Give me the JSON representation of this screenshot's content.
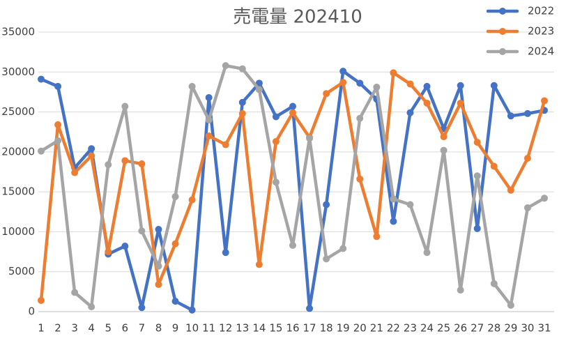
{
  "chart_data": {
    "type": "line",
    "title": "売電量 202410",
    "categories": [
      "1",
      "2",
      "3",
      "4",
      "5",
      "6",
      "7",
      "8",
      "9",
      "10",
      "11",
      "12",
      "13",
      "14",
      "15",
      "16",
      "17",
      "18",
      "19",
      "20",
      "21",
      "22",
      "23",
      "24",
      "25",
      "26",
      "27",
      "28",
      "29",
      "30",
      "31"
    ],
    "series": [
      {
        "name": "2022",
        "color": "#4472c4",
        "values": [
          29100,
          28200,
          18000,
          20400,
          7200,
          8200,
          500,
          10300,
          1300,
          200,
          26800,
          7400,
          26200,
          28600,
          24400,
          25700,
          400,
          13400,
          30100,
          28600,
          26600,
          11300,
          24900,
          28200,
          22900,
          28300,
          10400,
          28300,
          24500,
          24800,
          25200
        ]
      },
      {
        "name": "2023",
        "color": "#ed7d31",
        "values": [
          1400,
          23400,
          17400,
          19500,
          7500,
          18900,
          18500,
          3400,
          8500,
          14000,
          22000,
          20900,
          24800,
          5900,
          21300,
          24900,
          21800,
          27300,
          28700,
          16600,
          9400,
          29900,
          28500,
          26100,
          21900,
          26100,
          21200,
          18200,
          15200,
          19200,
          26400
        ]
      },
      {
        "name": "2024",
        "color": "#a5a5a5",
        "values": [
          20100,
          21400,
          2400,
          600,
          18400,
          25700,
          10100,
          5700,
          14400,
          28200,
          24000,
          30800,
          30400,
          27800,
          16200,
          8300,
          21700,
          6600,
          7900,
          24200,
          28100,
          14100,
          13400,
          7400,
          20200,
          2700,
          17000,
          3500,
          800,
          13000,
          14200
        ]
      }
    ],
    "ylim": [
      0,
      35000
    ],
    "yticks": [
      0,
      5000,
      10000,
      15000,
      20000,
      25000,
      30000,
      35000
    ],
    "grid": true,
    "legend": "top-right"
  }
}
